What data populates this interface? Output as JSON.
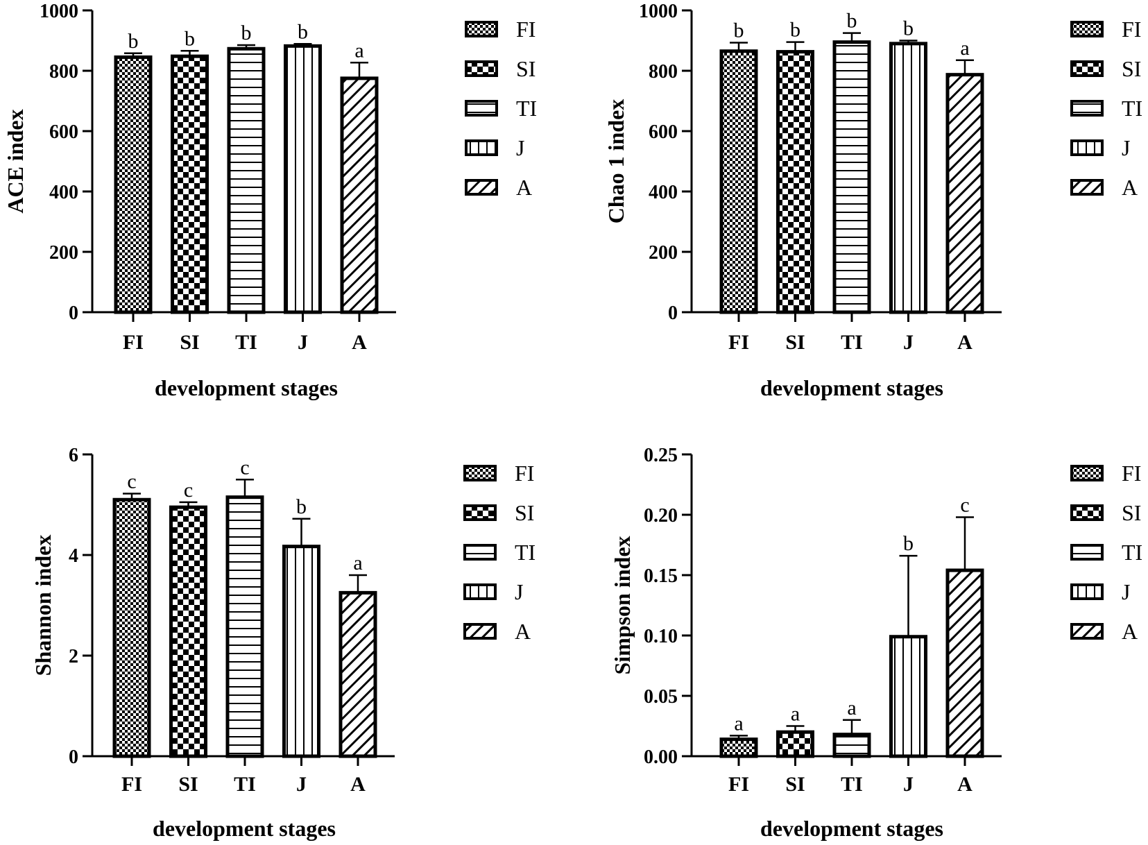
{
  "chart_data": [
    {
      "type": "bar",
      "ylabel": "ACE index",
      "xlabel": "development stages",
      "categories": [
        "FI",
        "SI",
        "TI",
        "J",
        "A"
      ],
      "values": [
        845,
        848,
        873,
        882,
        775
      ],
      "errors": [
        13,
        18,
        12,
        7,
        52
      ],
      "letters": [
        "b",
        "b",
        "b",
        "b",
        "a"
      ],
      "ylim": [
        0,
        1000
      ],
      "yticks": [
        0,
        200,
        400,
        600,
        800,
        1000
      ],
      "ytick_labels": [
        "0",
        "200",
        "400",
        "600",
        "800",
        "1000"
      ],
      "legend": [
        "FI",
        "SI",
        "TI",
        "J",
        "A"
      ]
    },
    {
      "type": "bar",
      "ylabel": "Chao 1 index",
      "xlabel": "development stages",
      "categories": [
        "FI",
        "SI",
        "TI",
        "J",
        "A"
      ],
      "values": [
        865,
        863,
        895,
        890,
        787
      ],
      "errors": [
        28,
        32,
        30,
        10,
        48
      ],
      "letters": [
        "b",
        "b",
        "b",
        "b",
        "a"
      ],
      "ylim": [
        0,
        1000
      ],
      "yticks": [
        0,
        200,
        400,
        600,
        800,
        1000
      ],
      "ytick_labels": [
        "0",
        "200",
        "400",
        "600",
        "800",
        "1000"
      ],
      "legend": [
        "FI",
        "SI",
        "TI",
        "J",
        "A"
      ]
    },
    {
      "type": "bar",
      "ylabel": "Shannon index",
      "xlabel": "development stages",
      "categories": [
        "FI",
        "SI",
        "TI",
        "J",
        "A"
      ],
      "values": [
        5.1,
        4.95,
        5.15,
        4.17,
        3.25
      ],
      "errors": [
        0.12,
        0.1,
        0.35,
        0.55,
        0.35
      ],
      "letters": [
        "c",
        "c",
        "c",
        "b",
        "a"
      ],
      "ylim": [
        0,
        6
      ],
      "yticks": [
        0,
        2,
        4,
        6
      ],
      "ytick_labels": [
        "0",
        "2",
        "4",
        "6"
      ],
      "legend": [
        "FI",
        "SI",
        "TI",
        "J",
        "A"
      ]
    },
    {
      "type": "bar",
      "ylabel": "Simpson index",
      "xlabel": "development stages",
      "categories": [
        "FI",
        "SI",
        "TI",
        "J",
        "A"
      ],
      "values": [
        0.014,
        0.02,
        0.018,
        0.099,
        0.154
      ],
      "errors": [
        0.003,
        0.005,
        0.012,
        0.067,
        0.044
      ],
      "letters": [
        "a",
        "a",
        "a",
        "b",
        "c"
      ],
      "ylim": [
        0,
        0.25
      ],
      "yticks": [
        0,
        0.05,
        0.1,
        0.15,
        0.2,
        0.25
      ],
      "ytick_labels": [
        "0.00",
        "0.05",
        "0.10",
        "0.15",
        "0.20",
        "0.25"
      ],
      "legend": [
        "FI",
        "SI",
        "TI",
        "J",
        "A"
      ]
    }
  ]
}
